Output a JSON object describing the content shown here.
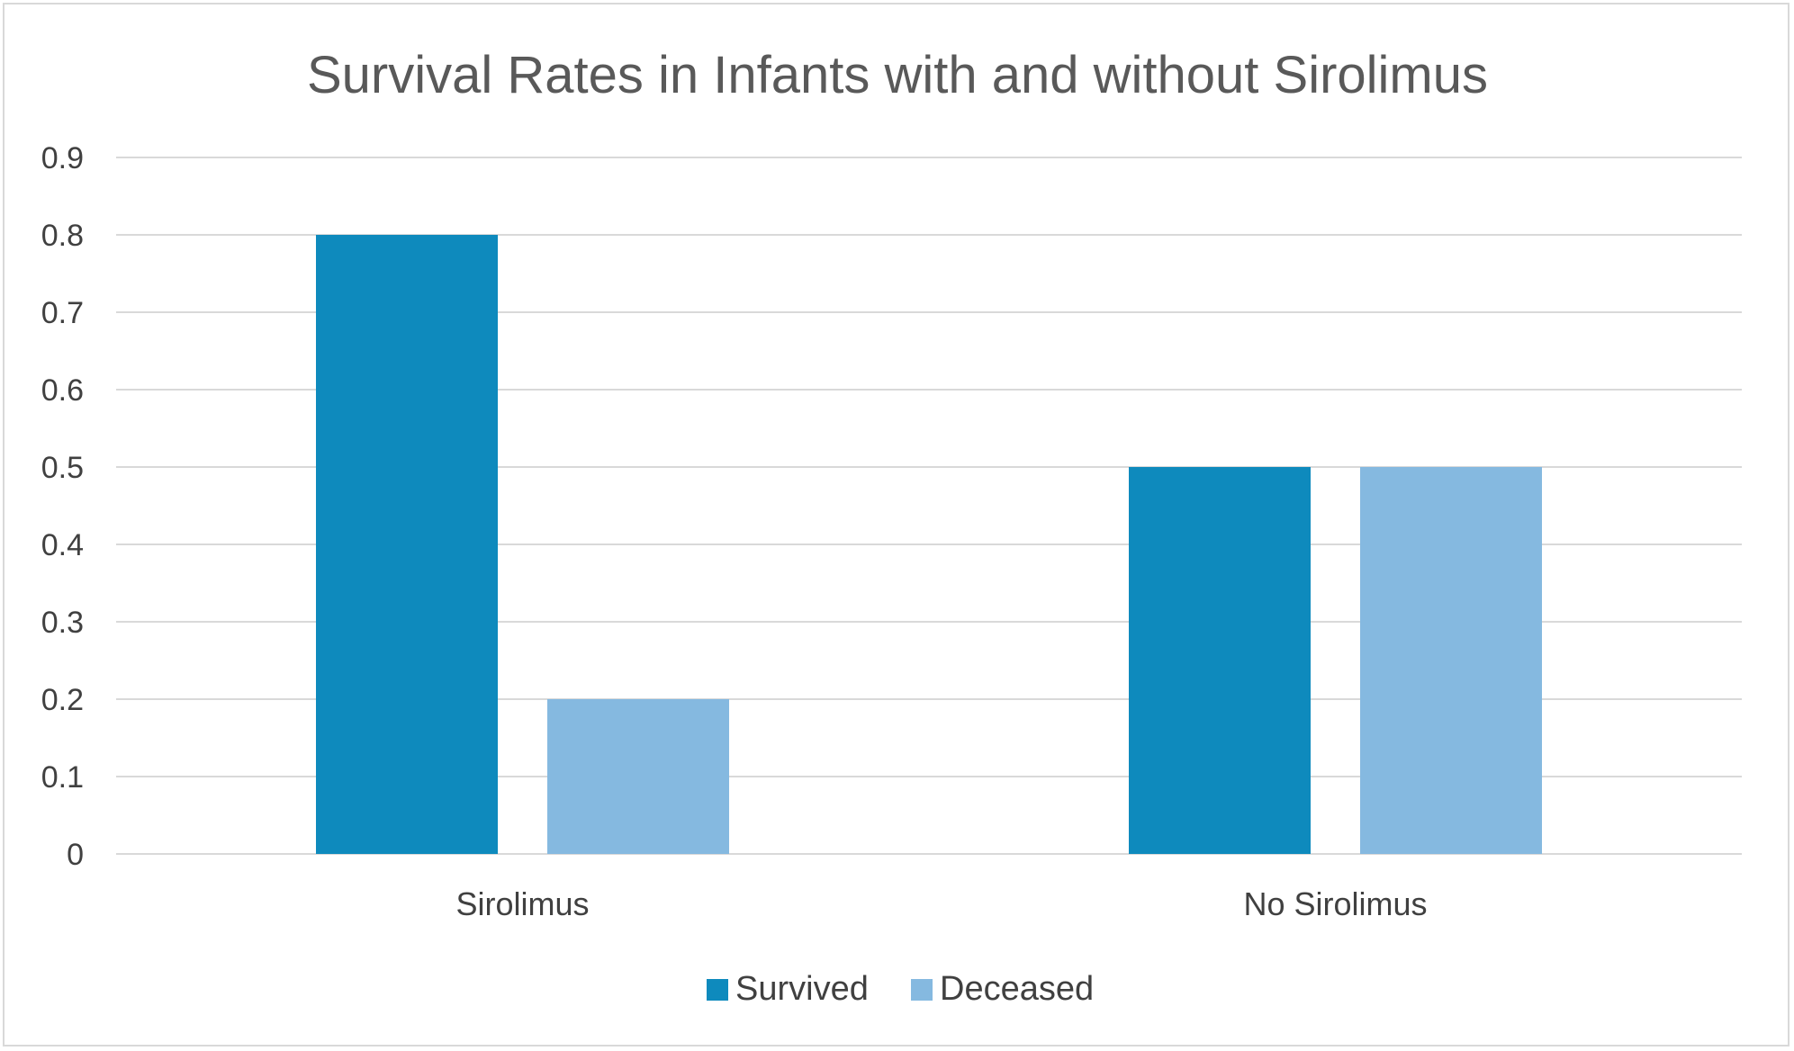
{
  "chart_data": {
    "type": "bar",
    "title": "Survival Rates in Infants with and without Sirolimus",
    "xlabel": "",
    "ylabel": "",
    "categories": [
      "Sirolimus",
      "No Sirolimus"
    ],
    "series": [
      {
        "name": "Survived",
        "color": "#0e8abd",
        "values": [
          0.8,
          0.5
        ]
      },
      {
        "name": "Deceased",
        "color": "#85b9e0",
        "values": [
          0.2,
          0.5
        ]
      }
    ],
    "ylim": [
      0,
      0.9
    ],
    "yticks": [
      "0",
      "0.1",
      "0.2",
      "0.3",
      "0.4",
      "0.5",
      "0.6",
      "0.7",
      "0.8",
      "0.9"
    ],
    "grid": true,
    "legend_position": "bottom",
    "colors": {
      "gridline": "#d9d9d9",
      "text": "#404040",
      "title": "#595959",
      "border": "#d9d9d9"
    }
  }
}
